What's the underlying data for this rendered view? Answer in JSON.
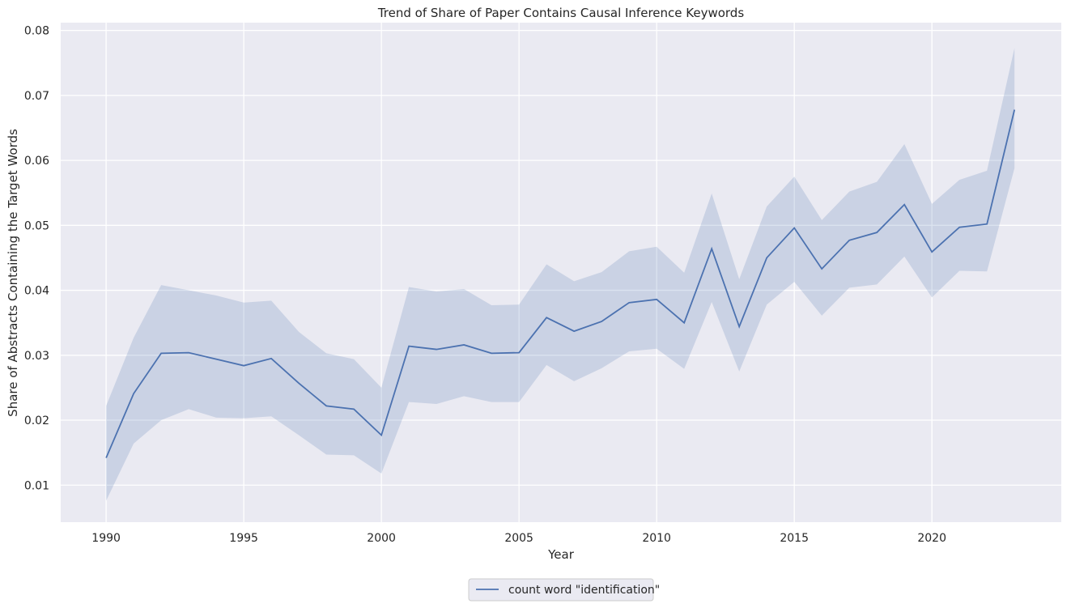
{
  "chart_data": {
    "type": "line",
    "title": "Trend of Share of Paper Contains Causal Inference Keywords",
    "xlabel": "Year",
    "ylabel": "Share of Abstracts Containing the Target Words",
    "xlim": [
      1988.35,
      2024.7
    ],
    "ylim": [
      0.0043,
      0.0812
    ],
    "xticks": [
      1990,
      1995,
      2000,
      2005,
      2010,
      2015,
      2020
    ],
    "xtick_labels": [
      "1990",
      "1995",
      "2000",
      "2005",
      "2010",
      "2015",
      "2020"
    ],
    "yticks": [
      0.01,
      0.02,
      0.03,
      0.04,
      0.05,
      0.06,
      0.07,
      0.08
    ],
    "ytick_labels": [
      "0.01",
      "0.02",
      "0.03",
      "0.04",
      "0.05",
      "0.06",
      "0.07",
      "0.08"
    ],
    "grid": true,
    "legend_position": "bottom-center, outside plot",
    "colors": {
      "line": "#4c72b0",
      "band": "#4c72b0",
      "background": "#eaeaf2",
      "grid": "#ffffff"
    },
    "series": [
      {
        "name": "count word \"identification\"",
        "x": [
          1990,
          1991,
          1992,
          1993,
          1994,
          1995,
          1996,
          1997,
          1998,
          1999,
          2000,
          2001,
          2002,
          2003,
          2004,
          2005,
          2006,
          2007,
          2008,
          2009,
          2010,
          2011,
          2012,
          2013,
          2014,
          2015,
          2016,
          2017,
          2018,
          2019,
          2020,
          2021,
          2022,
          2023
        ],
        "y": [
          0.0142,
          0.0241,
          0.0303,
          0.0304,
          0.0294,
          0.0284,
          0.0295,
          0.0257,
          0.0222,
          0.0217,
          0.0177,
          0.0314,
          0.0309,
          0.0316,
          0.0303,
          0.0304,
          0.0358,
          0.0337,
          0.0352,
          0.0381,
          0.0386,
          0.035,
          0.0464,
          0.0344,
          0.045,
          0.0496,
          0.0433,
          0.0477,
          0.0489,
          0.0532,
          0.0459,
          0.0497,
          0.0502,
          0.0678
        ],
        "ci_lower": [
          0.0076,
          0.0164,
          0.02,
          0.0217,
          0.0204,
          0.0203,
          0.0206,
          0.0177,
          0.0147,
          0.0146,
          0.0118,
          0.0228,
          0.0225,
          0.0237,
          0.0228,
          0.0228,
          0.0285,
          0.026,
          0.028,
          0.0306,
          0.031,
          0.0279,
          0.0382,
          0.0275,
          0.0378,
          0.0413,
          0.0361,
          0.0404,
          0.0409,
          0.0452,
          0.0389,
          0.043,
          0.0429,
          0.0588
        ],
        "ci_upper": [
          0.0222,
          0.0327,
          0.0408,
          0.04,
          0.0392,
          0.0381,
          0.0384,
          0.0336,
          0.0303,
          0.0294,
          0.025,
          0.0405,
          0.0398,
          0.0402,
          0.0377,
          0.0378,
          0.044,
          0.0414,
          0.0428,
          0.046,
          0.0467,
          0.0427,
          0.0549,
          0.0417,
          0.0529,
          0.0575,
          0.0508,
          0.0552,
          0.0567,
          0.0625,
          0.0533,
          0.057,
          0.0584,
          0.0773
        ]
      }
    ]
  }
}
